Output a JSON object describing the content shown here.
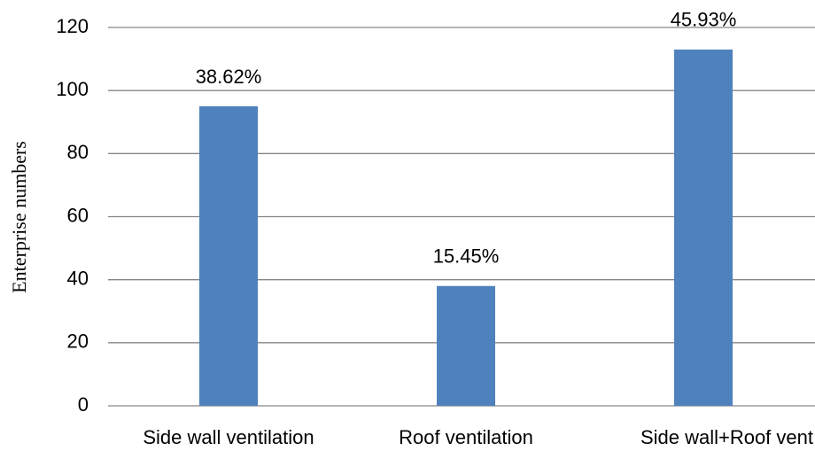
{
  "chart_data": {
    "type": "bar",
    "y_label": "Enterprise numbers",
    "categories": [
      "Side wall ventilation",
      "Roof ventilation",
      "Side wall+Roof vent"
    ],
    "values": [
      95,
      38,
      113
    ],
    "annotations": [
      "38.62%",
      "15.45%",
      "45.93%"
    ],
    "color": "#4f81bd",
    "ylim": [
      0,
      120
    ],
    "yticks": [
      0,
      20,
      40,
      60,
      80,
      100,
      120
    ],
    "grid": true
  }
}
